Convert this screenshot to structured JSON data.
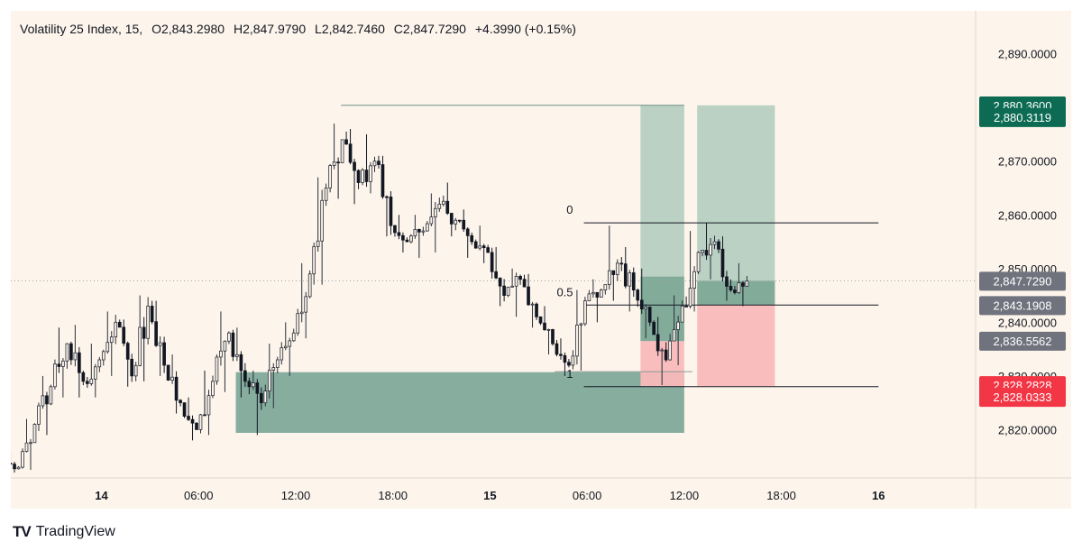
{
  "legend": {
    "symbol": "Volatility 25 Index, 15,",
    "open": "O2,843.2980",
    "high": "H2,847.9790",
    "low": "L2,842.7460",
    "close": "C2,847.7290",
    "change": "+4.3990 (+0.15%)"
  },
  "brand": {
    "logo": "TV",
    "name": "TradingView"
  },
  "colors": {
    "up": "#089981",
    "down": "#131722",
    "zone_green": "#7fa99a",
    "tp_green": "#b7cfc2",
    "sl_red": "#f9b9bb",
    "badge_green": "#0c6b52",
    "badge_red": "#f23645",
    "badge_grey": "#70737d",
    "background": "#fdf5eb"
  },
  "chart_data": {
    "type": "candlestick",
    "title": "Volatility 25 Index, 15",
    "ylim": [
      2811,
      2898
    ],
    "y_ticks": [
      "2,890.0000",
      "2,870.0000",
      "2,860.0000",
      "2,850.0000",
      "2,840.0000",
      "2,830.0000",
      "2,820.0000"
    ],
    "y_tick_values": [
      2890,
      2870,
      2860,
      2850,
      2840,
      2830,
      2820
    ],
    "x_ticks": [
      "14",
      "06:00",
      "12:00",
      "18:00",
      "15",
      "06:00",
      "12:00",
      "18:00",
      "16"
    ],
    "x_tick_hours": [
      0,
      6,
      12,
      18,
      24,
      30,
      36,
      42,
      48
    ],
    "x_range_hours": [
      -5.6,
      54.0
    ],
    "ohlc_hourly": [
      {
        "t": -5.5,
        "o": 2814.0,
        "h": 2816.0,
        "l": 2812.0,
        "c": 2813.0
      },
      {
        "t": -4.5,
        "o": 2813.0,
        "h": 2822.0,
        "l": 2812.5,
        "c": 2821.0
      },
      {
        "t": -3.5,
        "o": 2821.0,
        "h": 2830.0,
        "l": 2819.0,
        "c": 2828.0
      },
      {
        "t": -2.5,
        "o": 2828.0,
        "h": 2839.0,
        "l": 2826.0,
        "c": 2836.0
      },
      {
        "t": -1.5,
        "o": 2836.0,
        "h": 2839.5,
        "l": 2826.0,
        "c": 2829.0
      },
      {
        "t": -0.5,
        "o": 2829.0,
        "h": 2836.0,
        "l": 2826.0,
        "c": 2833.0
      },
      {
        "t": 0.5,
        "o": 2833.0,
        "h": 2842.0,
        "l": 2830.0,
        "c": 2840.0
      },
      {
        "t": 1.5,
        "o": 2840.0,
        "h": 2840.5,
        "l": 2828.0,
        "c": 2830.0
      },
      {
        "t": 2.5,
        "o": 2830.0,
        "h": 2845.0,
        "l": 2829.0,
        "c": 2843.0
      },
      {
        "t": 3.5,
        "o": 2843.0,
        "h": 2844.0,
        "l": 2830.0,
        "c": 2832.0
      },
      {
        "t": 4.5,
        "o": 2832.0,
        "h": 2834.0,
        "l": 2823.0,
        "c": 2825.0
      },
      {
        "t": 5.5,
        "o": 2825.0,
        "h": 2826.0,
        "l": 2818.0,
        "c": 2820.0
      },
      {
        "t": 6.5,
        "o": 2820.0,
        "h": 2831.0,
        "l": 2819.0,
        "c": 2829.0
      },
      {
        "t": 7.5,
        "o": 2829.0,
        "h": 2842.0,
        "l": 2827.0,
        "c": 2838.0
      },
      {
        "t": 8.5,
        "o": 2838.0,
        "h": 2839.0,
        "l": 2826.0,
        "c": 2829.0
      },
      {
        "t": 9.5,
        "o": 2829.0,
        "h": 2831.0,
        "l": 2819.0,
        "c": 2825.0
      },
      {
        "t": 10.5,
        "o": 2825.0,
        "h": 2836.0,
        "l": 2824.0,
        "c": 2833.0
      },
      {
        "t": 11.5,
        "o": 2833.0,
        "h": 2840.0,
        "l": 2830.0,
        "c": 2838.0
      },
      {
        "t": 12.5,
        "o": 2838.0,
        "h": 2851.0,
        "l": 2837.0,
        "c": 2849.0
      },
      {
        "t": 13.5,
        "o": 2849.0,
        "h": 2867.0,
        "l": 2847.0,
        "c": 2865.0
      },
      {
        "t": 14.5,
        "o": 2865.0,
        "h": 2877.0,
        "l": 2863.0,
        "c": 2874.0
      },
      {
        "t": 15.5,
        "o": 2874.0,
        "h": 2876.0,
        "l": 2862.0,
        "c": 2866.0
      },
      {
        "t": 16.5,
        "o": 2866.0,
        "h": 2875.0,
        "l": 2864.0,
        "c": 2870.0
      },
      {
        "t": 17.5,
        "o": 2870.0,
        "h": 2871.0,
        "l": 2856.0,
        "c": 2858.0
      },
      {
        "t": 18.5,
        "o": 2858.0,
        "h": 2860.0,
        "l": 2853.0,
        "c": 2855.0
      },
      {
        "t": 19.5,
        "o": 2855.0,
        "h": 2860.0,
        "l": 2852.0,
        "c": 2857.0
      },
      {
        "t": 20.5,
        "o": 2857.0,
        "h": 2864.0,
        "l": 2853.0,
        "c": 2862.0
      },
      {
        "t": 21.5,
        "o": 2862.0,
        "h": 2866.0,
        "l": 2856.0,
        "c": 2859.0
      },
      {
        "t": 22.5,
        "o": 2859.0,
        "h": 2861.0,
        "l": 2852.0,
        "c": 2855.0
      },
      {
        "t": 23.5,
        "o": 2855.0,
        "h": 2858.0,
        "l": 2851.0,
        "c": 2853.0
      },
      {
        "t": 24.5,
        "o": 2853.0,
        "h": 2854.0,
        "l": 2843.0,
        "c": 2845.0
      },
      {
        "t": 25.5,
        "o": 2845.0,
        "h": 2850.0,
        "l": 2841.0,
        "c": 2848.0
      },
      {
        "t": 26.5,
        "o": 2848.0,
        "h": 2849.0,
        "l": 2839.0,
        "c": 2841.0
      },
      {
        "t": 27.5,
        "o": 2841.0,
        "h": 2843.0,
        "l": 2834.0,
        "c": 2836.0
      },
      {
        "t": 28.5,
        "o": 2836.0,
        "h": 2837.0,
        "l": 2830.0,
        "c": 2832.0
      },
      {
        "t": 29.5,
        "o": 2832.0,
        "h": 2846.0,
        "l": 2831.0,
        "c": 2844.0
      },
      {
        "t": 30.5,
        "o": 2844.0,
        "h": 2848.0,
        "l": 2840.0,
        "c": 2846.0
      },
      {
        "t": 31.5,
        "o": 2846.0,
        "h": 2858.0,
        "l": 2844.0,
        "c": 2851.0
      },
      {
        "t": 32.5,
        "o": 2851.0,
        "h": 2854.0,
        "l": 2842.0,
        "c": 2846.0
      },
      {
        "t": 33.5,
        "o": 2846.0,
        "h": 2850.0,
        "l": 2837.0,
        "c": 2840.0
      },
      {
        "t": 34.5,
        "o": 2840.0,
        "h": 2841.0,
        "l": 2828.3,
        "c": 2833.0
      },
      {
        "t": 35.5,
        "o": 2833.0,
        "h": 2845.0,
        "l": 2832.0,
        "c": 2843.0
      },
      {
        "t": 36.5,
        "o": 2843.0,
        "h": 2857.0,
        "l": 2842.0,
        "c": 2853.0
      },
      {
        "t": 37.5,
        "o": 2853.0,
        "h": 2858.5,
        "l": 2848.0,
        "c": 2855.0
      },
      {
        "t": 38.5,
        "o": 2855.0,
        "h": 2856.0,
        "l": 2844.0,
        "c": 2846.0
      },
      {
        "t": 39.5,
        "o": 2846.0,
        "h": 2851.0,
        "l": 2843.0,
        "c": 2847.7
      }
    ],
    "last_price": "2,847.7290",
    "price_tags": [
      {
        "label": "2,880.3600",
        "value": 2880.36,
        "color": "green"
      },
      {
        "label": "2,880.3119",
        "value": 2878.2,
        "color": "green"
      },
      {
        "label": "2,847.7290",
        "value": 2847.729,
        "color": "grey"
      },
      {
        "label": "2,843.1908",
        "value": 2843.19,
        "color": "grey"
      },
      {
        "label": "2,836.5562",
        "value": 2836.556,
        "color": "grey"
      },
      {
        "label": "2,828.2828",
        "value": 2828.28,
        "color": "red"
      },
      {
        "label": "2,828.0333",
        "value": 2826.1,
        "color": "red"
      }
    ],
    "fib": {
      "levels": [
        {
          "label": "0",
          "value": 2858.5
        },
        {
          "label": "0.5",
          "value": 2843.2
        },
        {
          "label": "1",
          "value": 2828.0
        }
      ],
      "t_start": 29.8,
      "t_end": 48.0
    },
    "demand_zone": {
      "t_start": 8.3,
      "t_end": 36.0,
      "top": 2830.7,
      "bottom": 2819.4
    },
    "high_line": {
      "value": 2880.4,
      "t_start": 14.8,
      "t_end": 36.0
    },
    "low_line": {
      "value": 2830.8,
      "t_start": 28.0,
      "t_end": 36.5
    },
    "positions": [
      {
        "t_start": 33.3,
        "t_end": 36.0,
        "entry": 2836.5,
        "target": 2880.4,
        "stop": 2828.1,
        "profit_fill_to": 2848.5
      },
      {
        "t_start": 36.8,
        "t_end": 41.6,
        "entry": 2843.2,
        "target": 2880.4,
        "stop": 2828.1,
        "profit_fill_to": 2847.7
      }
    ]
  }
}
